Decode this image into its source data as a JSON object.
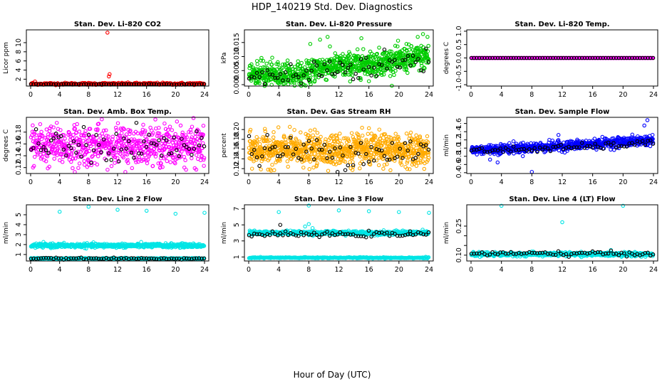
{
  "figure": {
    "title": "HDP_140219  Std. Dev. Diagnostics",
    "xlabel": "Hour of Day (UTC)"
  },
  "chart_data": [
    {
      "type": "scatter",
      "title": "Stan. Dev. Li-820 CO2",
      "ylabel": "Licor ppm",
      "xlim": [
        0,
        24
      ],
      "xticks": [
        0,
        4,
        8,
        12,
        16,
        20,
        24
      ],
      "ylim": [
        0.5,
        12.8
      ],
      "yticks": [
        2,
        4,
        6,
        8,
        10
      ],
      "ytick_labels": [
        "2",
        "4",
        "6",
        "8",
        "10"
      ],
      "series": [
        {
          "color": "#ff0000",
          "baseline": 1.0,
          "spread": 0.12,
          "count": 260,
          "outliers": [
            [
              0.3,
              1.2
            ],
            [
              0.6,
              1.5
            ],
            [
              10.6,
              12.2
            ],
            [
              10.8,
              2.6
            ],
            [
              10.9,
              3.1
            ]
          ]
        },
        {
          "color": "#000000",
          "baseline": 0.9,
          "spread": 0.05,
          "count": 70,
          "outliers": []
        }
      ]
    },
    {
      "type": "scatter",
      "title": "Stan. Dev. Li-820 Pressure",
      "ylabel": "kPa",
      "xlim": [
        0,
        24
      ],
      "xticks": [
        0,
        4,
        8,
        12,
        16,
        20,
        24
      ],
      "ylim": [
        -0.0005,
        0.0195
      ],
      "yticks": [
        0.0,
        0.005,
        0.01,
        0.015
      ],
      "ytick_labels": [
        "0.000",
        "0.005",
        "0.010",
        "0.015"
      ],
      "series": [
        {
          "color": "#00cc00",
          "trend": [
            [
              0,
              0.0035
            ],
            [
              8,
              0.0035
            ],
            [
              9,
              0.006
            ],
            [
              16,
              0.0075
            ],
            [
              24,
              0.01
            ]
          ],
          "spread": 0.0022,
          "count": 900,
          "outliers": [
            [
              8.2,
              0.0145
            ],
            [
              9.5,
              0.016
            ],
            [
              10.5,
              0.017
            ],
            [
              15,
              0.0165
            ],
            [
              21,
              0.0145
            ],
            [
              22.5,
              0.017
            ],
            [
              23.2,
              0.018
            ],
            [
              23.8,
              0.017
            ]
          ]
        },
        {
          "color": "#000000",
          "trend": [
            [
              0,
              0.003
            ],
            [
              8,
              0.003
            ],
            [
              9,
              0.0055
            ],
            [
              16,
              0.0065
            ],
            [
              24,
              0.009
            ]
          ],
          "spread": 0.0025,
          "count": 70,
          "outliers": []
        }
      ]
    },
    {
      "type": "scatter",
      "title": "Stan. Dev. Li-820 Temp.",
      "ylabel": "degrees C",
      "xlim": [
        0,
        24
      ],
      "xticks": [
        0,
        4,
        8,
        12,
        16,
        20,
        24
      ],
      "ylim": [
        -1.05,
        1.05
      ],
      "yticks": [
        -1.0,
        -0.5,
        0.0,
        0.5,
        1.0
      ],
      "ytick_labels": [
        "-1.0",
        "-0.5",
        "0.0",
        "0.5",
        "1.0"
      ],
      "series": [
        {
          "color": "#ff00ff",
          "baseline": 0.0,
          "spread": 0.0,
          "count": 300,
          "outliers": []
        },
        {
          "color": "#000000",
          "baseline": 0.0,
          "spread": 0.0,
          "count": 70,
          "outliers": []
        }
      ]
    },
    {
      "type": "scatter",
      "title": "Stan. Dev. Amb. Box Temp.",
      "ylabel": "degrees C",
      "xlim": [
        0,
        24
      ],
      "xticks": [
        0,
        4,
        8,
        12,
        16,
        20,
        24
      ],
      "ylim": [
        0.11,
        0.205
      ],
      "yticks": [
        0.12,
        0.14,
        0.16,
        0.18
      ],
      "ytick_labels": [
        "0.12",
        "0.14",
        "0.16",
        "0.18"
      ],
      "series": [
        {
          "color": "#ff00ff",
          "baseline": 0.157,
          "spread": 0.017,
          "count": 700,
          "outliers": []
        },
        {
          "color": "#000000",
          "baseline": 0.155,
          "spread": 0.015,
          "count": 70,
          "outliers": []
        }
      ]
    },
    {
      "type": "scatter",
      "title": "Stan. Dev. Gas Stream RH",
      "ylabel": "percent",
      "xlim": [
        0,
        24
      ],
      "xticks": [
        0,
        4,
        8,
        12,
        16,
        20,
        24
      ],
      "ylim": [
        0.11,
        0.225
      ],
      "yticks": [
        0.12,
        0.14,
        0.16,
        0.18,
        0.2
      ],
      "ytick_labels": [
        "0.12",
        "0.14",
        "0.16",
        "0.18",
        "0.20"
      ],
      "series": [
        {
          "color": "#ffaa00",
          "baseline": 0.158,
          "spread": 0.016,
          "count": 900,
          "outliers": []
        },
        {
          "color": "#000000",
          "baseline": 0.155,
          "spread": 0.016,
          "count": 70,
          "outliers": []
        }
      ]
    },
    {
      "type": "scatter",
      "title": "Stan. Dev. Sample Flow",
      "ylabel": "ml/min",
      "xlim": [
        0,
        24
      ],
      "xticks": [
        0,
        4,
        8,
        12,
        16,
        20,
        24
      ],
      "ylim": [
        0.38,
        1.75
      ],
      "yticks": [
        0.4,
        0.6,
        0.8,
        1.0,
        1.2,
        1.4,
        1.6
      ],
      "ytick_labels": [
        "0.4",
        "0.6",
        "0.8",
        "1.0",
        "1.2",
        "1.4",
        "1.6"
      ],
      "series": [
        {
          "color": "#0000ff",
          "trend": [
            [
              0,
              0.95
            ],
            [
              12,
              1.05
            ],
            [
              24,
              1.2
            ]
          ],
          "spread": 0.06,
          "count": 700,
          "outliers": [
            [
              2.5,
              0.72
            ],
            [
              3.5,
              0.65
            ],
            [
              8.0,
              0.42
            ],
            [
              11.5,
              1.32
            ],
            [
              22.8,
              1.55
            ],
            [
              23.2,
              1.68
            ]
          ]
        },
        {
          "color": "#000000",
          "trend": [
            [
              0,
              0.93
            ],
            [
              12,
              1.0
            ],
            [
              24,
              1.12
            ]
          ],
          "spread": 0.04,
          "count": 70,
          "outliers": []
        }
      ]
    },
    {
      "type": "scatter",
      "title": "Stan. Dev. Line 2 Flow",
      "ylabel": "ml/min",
      "xlim": [
        0,
        24
      ],
      "xticks": [
        0,
        4,
        8,
        12,
        16,
        20,
        24
      ],
      "ylim": [
        0.35,
        6.0
      ],
      "yticks": [
        1,
        2,
        3,
        4,
        5
      ],
      "ytick_labels": [
        "1",
        "2",
        "3",
        "4",
        "5"
      ],
      "series": [
        {
          "color": "#00e5e5",
          "baseline": 1.9,
          "spread": 0.1,
          "count": 600,
          "outliers": [
            [
              4,
              5.3
            ],
            [
              8,
              5.8
            ],
            [
              12,
              5.5
            ],
            [
              16,
              5.4
            ],
            [
              20,
              5.1
            ],
            [
              24,
              5.2
            ]
          ]
        },
        {
          "color": "#00e5e5",
          "baseline": 0.6,
          "spread": 0.03,
          "count": 300,
          "outliers": []
        },
        {
          "color": "#000000",
          "baseline": 0.6,
          "spread": 0.04,
          "count": 70,
          "outliers": []
        }
      ]
    },
    {
      "type": "scatter",
      "title": "Stan. Dev. Line 3 Flow",
      "ylabel": "ml/min",
      "xlim": [
        0,
        24
      ],
      "xticks": [
        0,
        4,
        8,
        12,
        16,
        20,
        24
      ],
      "ylim": [
        0.5,
        7.5
      ],
      "yticks": [
        1,
        3,
        5,
        7
      ],
      "ytick_labels": [
        "1",
        "3",
        "5",
        "7"
      ],
      "series": [
        {
          "color": "#00e5e5",
          "baseline": 4.0,
          "spread": 0.12,
          "count": 600,
          "outliers": [
            [
              4,
              6.6
            ],
            [
              8,
              7.4
            ],
            [
              12,
              6.8
            ],
            [
              16,
              6.7
            ],
            [
              20,
              6.6
            ],
            [
              24,
              6.5
            ],
            [
              7.5,
              4.8
            ],
            [
              8.0,
              5.1
            ],
            [
              8.5,
              4.6
            ]
          ]
        },
        {
          "color": "#00e5e5",
          "baseline": 0.9,
          "spread": 0.04,
          "count": 300,
          "outliers": []
        },
        {
          "color": "#000000",
          "baseline": 3.8,
          "spread": 0.15,
          "count": 70,
          "outliers": [
            [
              4.2,
              5.0
            ],
            [
              21.5,
              4.2
            ]
          ]
        }
      ]
    },
    {
      "type": "scatter",
      "title": "Stan. Dev. Line 4 (LT) Flow",
      "ylabel": "ml/min",
      "xlim": [
        0,
        24
      ],
      "xticks": [
        0,
        4,
        8,
        12,
        16,
        20,
        24
      ],
      "ylim": [
        0.07,
        0.36
      ],
      "yticks": [
        0.1,
        0.15,
        0.2,
        0.25
      ],
      "ytick_labels": [
        "0.10",
        "",
        "",
        "0.25"
      ],
      "series": [
        {
          "color": "#00e5e5",
          "baseline": 0.105,
          "spread": 0.005,
          "count": 600,
          "outliers": [
            [
              4,
              0.355
            ],
            [
              12,
              0.27
            ],
            [
              20,
              0.355
            ]
          ]
        },
        {
          "color": "#000000",
          "baseline": 0.108,
          "spread": 0.006,
          "count": 70,
          "outliers": []
        }
      ]
    }
  ]
}
